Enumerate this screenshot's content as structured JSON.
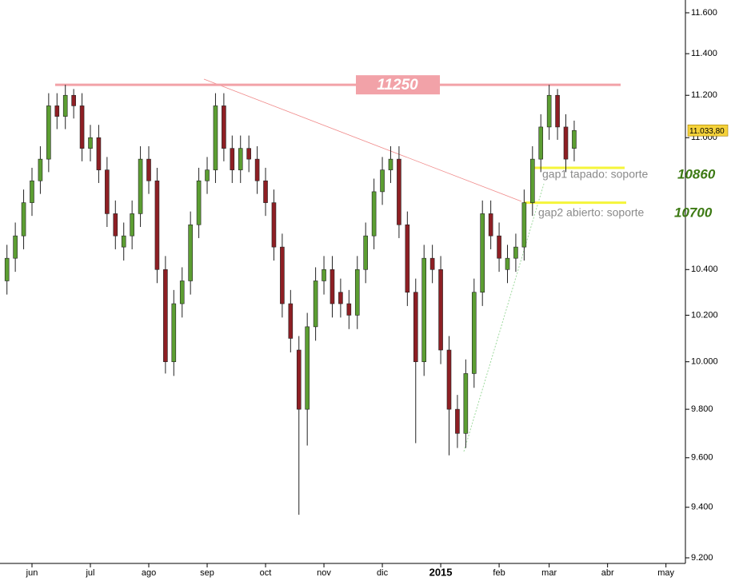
{
  "chart_data": {
    "type": "candlestick",
    "categories": [
      null,
      null,
      null,
      "jun",
      null,
      null,
      null,
      null,
      null,
      null,
      "jul",
      null,
      null,
      null,
      null,
      null,
      null,
      "ago",
      null,
      null,
      null,
      null,
      null,
      null,
      "sep",
      null,
      null,
      null,
      null,
      null,
      null,
      "oct",
      null,
      null,
      null,
      null,
      null,
      null,
      "nov",
      null,
      null,
      null,
      null,
      null,
      null,
      "dic",
      null,
      null,
      null,
      null,
      null,
      null,
      "2015",
      null,
      null,
      null,
      null,
      null,
      null,
      "feb",
      null,
      null,
      null,
      null,
      null,
      "mar",
      null,
      null,
      null,
      null,
      null,
      null,
      "abr",
      null,
      null,
      null,
      null,
      null,
      null,
      "may"
    ],
    "open": [
      10350,
      10450,
      10550,
      10700,
      10800,
      10900,
      11150,
      11100,
      11200,
      11150,
      10950,
      11000,
      10850,
      10650,
      10500,
      10550,
      10650,
      10900,
      10800,
      10400,
      10000,
      10250,
      10350,
      10600,
      10800,
      10850,
      11150,
      10950,
      10850,
      10950,
      10900,
      10800,
      10700,
      10500,
      10250,
      10050,
      9800,
      10150,
      10350,
      10400,
      10300,
      10250,
      10200,
      10400,
      10550,
      10750,
      10850,
      10900,
      10600,
      10300,
      10000,
      10450,
      10400,
      10050,
      9800,
      9700,
      9950,
      10300,
      10650,
      10550,
      10400,
      10450,
      10500,
      10700,
      10900,
      11050,
      11200,
      11050,
      10950,
      null,
      null,
      null,
      null,
      null,
      null,
      null,
      null,
      null,
      null,
      null
    ],
    "high": [
      10510,
      10610,
      10760,
      10860,
      10960,
      11210,
      11210,
      11250,
      11230,
      11210,
      11060,
      11060,
      10910,
      10710,
      10610,
      10710,
      10960,
      10960,
      10860,
      10460,
      10310,
      10410,
      10660,
      10860,
      10910,
      11210,
      11210,
      11010,
      11010,
      11010,
      10960,
      10860,
      10760,
      10560,
      10310,
      10110,
      10210,
      10410,
      10460,
      10460,
      10360,
      10310,
      10460,
      10610,
      10810,
      10910,
      10960,
      10960,
      10660,
      10360,
      10510,
      10510,
      10460,
      10110,
      9860,
      10010,
      10360,
      10710,
      10710,
      10610,
      10510,
      10560,
      10760,
      10960,
      11110,
      11250,
      11230,
      11110,
      11080,
      null,
      null,
      null,
      null,
      null,
      null,
      null,
      null,
      null,
      null,
      null
    ],
    "low": [
      10290,
      10390,
      10490,
      10640,
      10740,
      10840,
      11040,
      11040,
      11090,
      10890,
      10890,
      10790,
      10590,
      10490,
      10440,
      10490,
      10590,
      10740,
      10340,
      9950,
      9940,
      10190,
      10290,
      10540,
      10740,
      10790,
      10890,
      10790,
      10790,
      10840,
      10740,
      10640,
      10440,
      10190,
      10040,
      9370,
      9650,
      10090,
      10290,
      10190,
      10190,
      10140,
      10140,
      10340,
      10490,
      10690,
      10790,
      10540,
      10240,
      9660,
      9940,
      10340,
      9990,
      9610,
      9640,
      9640,
      9890,
      10240,
      10490,
      10390,
      10340,
      10390,
      10440,
      10640,
      10840,
      10990,
      10990,
      10840,
      10890,
      null,
      null,
      null,
      null,
      null,
      null,
      null,
      null,
      null,
      null,
      null
    ],
    "close": [
      10450,
      10550,
      10700,
      10800,
      10900,
      11150,
      11100,
      11200,
      11150,
      10950,
      11000,
      10850,
      10650,
      10550,
      10550,
      10650,
      10900,
      10800,
      10400,
      10000,
      10250,
      10350,
      10600,
      10800,
      10850,
      11150,
      10950,
      10850,
      10950,
      10900,
      10800,
      10700,
      10500,
      10250,
      10100,
      9800,
      10150,
      10350,
      10400,
      10250,
      10250,
      10200,
      10400,
      10550,
      10750,
      10850,
      10900,
      10600,
      10300,
      10000,
      10450,
      10400,
      10050,
      9800,
      9700,
      9950,
      10300,
      10650,
      10550,
      10450,
      10450,
      10500,
      10700,
      10900,
      11050,
      11200,
      11050,
      10900,
      11033.8,
      null,
      null,
      null,
      null,
      null,
      null,
      null,
      null,
      null,
      null,
      null
    ],
    "up_color": "#5c9e32",
    "down_color": "#8e1f24",
    "ylim": [
      9200,
      11600
    ],
    "log_scale": true,
    "yticks": [
      {
        "value": 9200,
        "label": "9.200"
      },
      {
        "value": 9400,
        "label": "9.400"
      },
      {
        "value": 9600,
        "label": "9.600"
      },
      {
        "value": 9800,
        "label": "9.800"
      },
      {
        "value": 10000,
        "label": "10.000"
      },
      {
        "value": 10200,
        "label": "10.200"
      },
      {
        "value": 10400,
        "label": "10.400"
      },
      {
        "value": 11000,
        "label": "11.000"
      },
      {
        "value": 11200,
        "label": "11.200"
      },
      {
        "value": 11400,
        "label": "11.400"
      },
      {
        "value": 11600,
        "label": "11.600"
      }
    ],
    "last_price": {
      "value": 11033.8,
      "label": "11.033,80"
    },
    "levels": [
      {
        "value": 11250,
        "color": "#f2a2a8"
      },
      {
        "value": 10860,
        "text": "gap1 tapado: soporte",
        "color": "#f5f53a"
      },
      {
        "value": 10700,
        "text": "gap2 abierto: soporte",
        "color": "#f5f53a"
      }
    ]
  }
}
